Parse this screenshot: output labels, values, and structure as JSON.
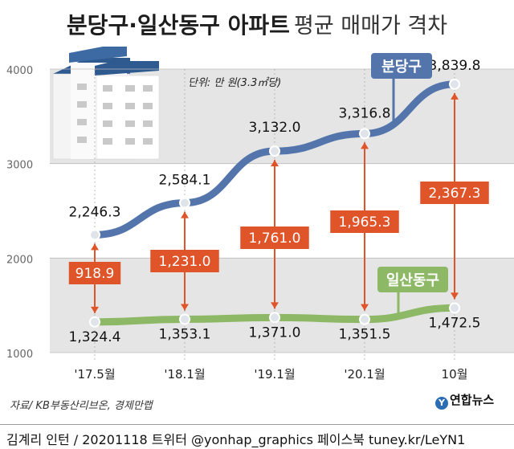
{
  "title": {
    "bold": "분당구·일산동구 아파트",
    "light": "평균 매매가 격차"
  },
  "unit_note": "단위: 만 원(3.3㎡당)",
  "source": "자료/ KB부동산리브온, 경제만랩",
  "logo": {
    "mark": "Y",
    "text": "연합뉴스"
  },
  "footer": "김계리 인턴 / 20201118 트위터 @yonhap_graphics 페이스북 tuney.kr/LeYN1",
  "colors": {
    "bundang": "#5475ab",
    "ilsan": "#8db866",
    "gap": "#e0542a",
    "band": "#e5e5e5"
  },
  "chart_data": {
    "type": "line",
    "categories": [
      "'17.5월",
      "'18.1월",
      "'19.1월",
      "'20.1월",
      "10월"
    ],
    "y_ticks": [
      1000,
      2000,
      3000,
      4000
    ],
    "ylim": [
      1000,
      4000
    ],
    "grid": "alternating bands",
    "series": [
      {
        "name": "분당구",
        "values": [
          2246.3,
          2584.1,
          3132.0,
          3316.8,
          3839.8
        ],
        "labels": [
          "2,246.3",
          "2,584.1",
          "3,132.0",
          "3,316.8",
          "3,839.8"
        ]
      },
      {
        "name": "일산동구",
        "values": [
          1324.4,
          1353.1,
          1371.0,
          1351.5,
          1472.5
        ],
        "labels": [
          "1,324.4",
          "1,353.1",
          "1,371.0",
          "1,351.5",
          "1,472.5"
        ]
      }
    ],
    "gaps": [
      918.9,
      1231.0,
      1761.0,
      1965.3,
      2367.3
    ],
    "gap_labels": [
      "918.9",
      "1,231.0",
      "1,761.0",
      "1,965.3",
      "2,367.3"
    ]
  }
}
